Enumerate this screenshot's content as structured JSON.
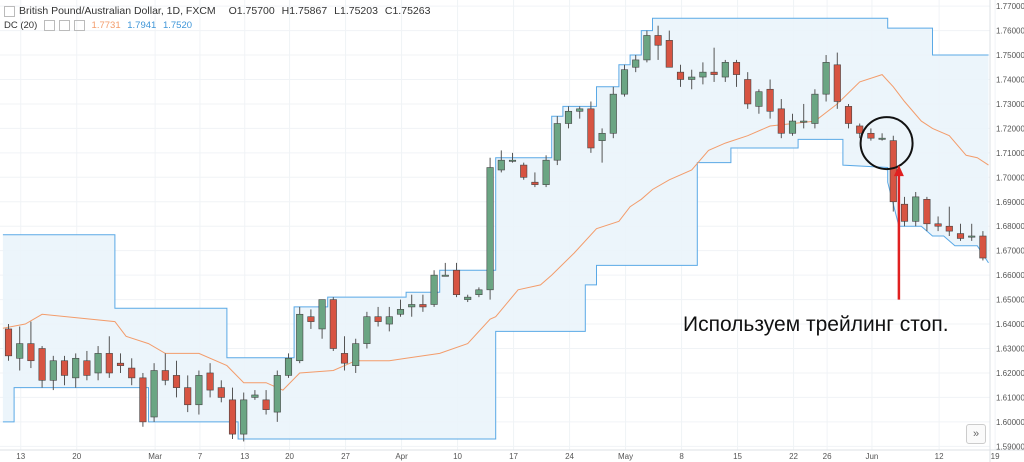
{
  "header": {
    "symbol": "British Pound/Australian Dollar, 1D, FXCM",
    "open_label": "O",
    "open": "1.75700",
    "high_label": "H",
    "high": "1.75867",
    "low_label": "L",
    "low": "1.75203",
    "close_label": "C",
    "close": "1.75263"
  },
  "indicator": {
    "name": "DC (20)",
    "values": [
      "1.7731",
      "1.7941",
      "1.7520"
    ],
    "colors": [
      "#f39c6b",
      "#5aa9e6",
      "#5aa9e6"
    ]
  },
  "annotation": {
    "text": "Используем трейлинг стоп."
  },
  "goto_icon": "chevrons-right-icon",
  "chart_data": {
    "type": "candlestick",
    "ylim": [
      1.5885,
      1.7725
    ],
    "y_ticks": [
      "1.77000",
      "1.76000",
      "1.75000",
      "1.74000",
      "1.73000",
      "1.72000",
      "1.71000",
      "1.70000",
      "1.69000",
      "1.68000",
      "1.67000",
      "1.66000",
      "1.65000",
      "1.64000",
      "1.63000",
      "1.62000",
      "1.61000",
      "1.60000",
      "1.59000"
    ],
    "x_ticks": [
      "13",
      "20",
      "Mar",
      "7",
      "13",
      "20",
      "27",
      "Apr",
      "10",
      "17",
      "24",
      "May",
      "8",
      "15",
      "22",
      "26",
      "Jun",
      "12",
      "19"
    ],
    "colors": {
      "up": "#6ba583",
      "down": "#d75442",
      "channel": "#5aa9e6",
      "mid": "#f39c6b",
      "fill": "#eaf4fb",
      "annotation": "#e02020"
    },
    "candles": [
      [
        1.638,
        1.64,
        1.625,
        1.627
      ],
      [
        1.626,
        1.639,
        1.621,
        1.632
      ],
      [
        1.632,
        1.641,
        1.622,
        1.625
      ],
      [
        1.63,
        1.631,
        1.614,
        1.617
      ],
      [
        1.617,
        1.627,
        1.613,
        1.625
      ],
      [
        1.625,
        1.627,
        1.615,
        1.619
      ],
      [
        1.618,
        1.628,
        1.614,
        1.626
      ],
      [
        1.625,
        1.629,
        1.617,
        1.619
      ],
      [
        1.62,
        1.631,
        1.617,
        1.628
      ],
      [
        1.628,
        1.635,
        1.618,
        1.62
      ],
      [
        1.624,
        1.628,
        1.62,
        1.623
      ],
      [
        1.622,
        1.626,
        1.615,
        1.618
      ],
      [
        1.618,
        1.62,
        1.598,
        1.6
      ],
      [
        1.602,
        1.624,
        1.6,
        1.621
      ],
      [
        1.621,
        1.628,
        1.615,
        1.617
      ],
      [
        1.619,
        1.625,
        1.61,
        1.614
      ],
      [
        1.614,
        1.619,
        1.604,
        1.607
      ],
      [
        1.607,
        1.621,
        1.603,
        1.619
      ],
      [
        1.62,
        1.624,
        1.61,
        1.613
      ],
      [
        1.614,
        1.617,
        1.608,
        1.61
      ],
      [
        1.609,
        1.614,
        1.593,
        1.595
      ],
      [
        1.595,
        1.612,
        1.592,
        1.609
      ],
      [
        1.61,
        1.613,
        1.609,
        1.611
      ],
      [
        1.609,
        1.613,
        1.603,
        1.605
      ],
      [
        1.604,
        1.621,
        1.6,
        1.619
      ],
      [
        1.619,
        1.628,
        1.618,
        1.626
      ],
      [
        1.625,
        1.647,
        1.624,
        1.644
      ],
      [
        1.643,
        1.646,
        1.638,
        1.641
      ],
      [
        1.638,
        1.65,
        1.634,
        1.65
      ],
      [
        1.65,
        1.651,
        1.629,
        1.63
      ],
      [
        1.628,
        1.635,
        1.621,
        1.624
      ],
      [
        1.623,
        1.634,
        1.62,
        1.632
      ],
      [
        1.632,
        1.645,
        1.63,
        1.643
      ],
      [
        1.643,
        1.647,
        1.639,
        1.641
      ],
      [
        1.64,
        1.647,
        1.637,
        1.643
      ],
      [
        1.644,
        1.65,
        1.643,
        1.646
      ],
      [
        1.647,
        1.652,
        1.643,
        1.648
      ],
      [
        1.648,
        1.652,
        1.645,
        1.647
      ],
      [
        1.648,
        1.662,
        1.647,
        1.66
      ],
      [
        1.66,
        1.665,
        1.66,
        1.66
      ],
      [
        1.662,
        1.665,
        1.651,
        1.652
      ],
      [
        1.65,
        1.652,
        1.649,
        1.651
      ],
      [
        1.652,
        1.655,
        1.651,
        1.654
      ],
      [
        1.654,
        1.708,
        1.65,
        1.704
      ],
      [
        1.703,
        1.711,
        1.702,
        1.707
      ],
      [
        1.707,
        1.71,
        1.706,
        1.707
      ],
      [
        1.705,
        1.706,
        1.699,
        1.7
      ],
      [
        1.698,
        1.702,
        1.696,
        1.697
      ],
      [
        1.697,
        1.709,
        1.696,
        1.707
      ],
      [
        1.707,
        1.725,
        1.705,
        1.722
      ],
      [
        1.722,
        1.729,
        1.72,
        1.727
      ],
      [
        1.727,
        1.729,
        1.724,
        1.728
      ],
      [
        1.728,
        1.731,
        1.71,
        1.712
      ],
      [
        1.715,
        1.72,
        1.706,
        1.718
      ],
      [
        1.718,
        1.737,
        1.716,
        1.734
      ],
      [
        1.734,
        1.746,
        1.733,
        1.744
      ],
      [
        1.745,
        1.75,
        1.743,
        1.748
      ],
      [
        1.748,
        1.76,
        1.747,
        1.758
      ],
      [
        1.758,
        1.762,
        1.748,
        1.754
      ],
      [
        1.756,
        1.76,
        1.745,
        1.745
      ],
      [
        1.743,
        1.746,
        1.737,
        1.74
      ],
      [
        1.74,
        1.744,
        1.736,
        1.741
      ],
      [
        1.741,
        1.747,
        1.738,
        1.743
      ],
      [
        1.743,
        1.753,
        1.739,
        1.742
      ],
      [
        1.741,
        1.748,
        1.739,
        1.747
      ],
      [
        1.747,
        1.748,
        1.737,
        1.742
      ],
      [
        1.74,
        1.743,
        1.728,
        1.73
      ],
      [
        1.729,
        1.736,
        1.726,
        1.735
      ],
      [
        1.736,
        1.74,
        1.724,
        1.727
      ],
      [
        1.728,
        1.732,
        1.716,
        1.718
      ],
      [
        1.718,
        1.726,
        1.717,
        1.723
      ],
      [
        1.723,
        1.73,
        1.72,
        1.723
      ],
      [
        1.722,
        1.736,
        1.72,
        1.734
      ],
      [
        1.734,
        1.75,
        1.731,
        1.747
      ],
      [
        1.746,
        1.751,
        1.728,
        1.731
      ],
      [
        1.729,
        1.73,
        1.72,
        1.722
      ],
      [
        1.721,
        1.722,
        1.716,
        1.718
      ],
      [
        1.718,
        1.72,
        1.715,
        1.716
      ],
      [
        1.716,
        1.718,
        1.715,
        1.716
      ],
      [
        1.715,
        1.717,
        1.686,
        1.69
      ],
      [
        1.689,
        1.692,
        1.68,
        1.682
      ],
      [
        1.682,
        1.694,
        1.68,
        1.692
      ],
      [
        1.691,
        1.692,
        1.678,
        1.681
      ],
      [
        1.681,
        1.684,
        1.678,
        1.68
      ],
      [
        1.68,
        1.688,
        1.676,
        1.678
      ],
      [
        1.677,
        1.681,
        1.674,
        1.675
      ],
      [
        1.676,
        1.681,
        1.674,
        1.676
      ],
      [
        1.676,
        1.678,
        1.666,
        1.667
      ]
    ],
    "channel_upper": [
      [
        -0.5,
        1.6765
      ],
      [
        9.5,
        1.6765
      ],
      [
        9.5,
        1.6465
      ],
      [
        19.5,
        1.6465
      ],
      [
        19.5,
        1.6262
      ],
      [
        25.5,
        1.6262
      ],
      [
        25.5,
        1.647
      ],
      [
        28.5,
        1.647
      ],
      [
        28.5,
        1.651
      ],
      [
        35.5,
        1.651
      ],
      [
        35.5,
        1.653
      ],
      [
        38.5,
        1.653
      ],
      [
        38.5,
        1.662
      ],
      [
        43.5,
        1.662
      ],
      [
        43.5,
        1.708
      ],
      [
        48.5,
        1.708
      ],
      [
        48.5,
        1.725
      ],
      [
        49.5,
        1.725
      ],
      [
        49.5,
        1.729
      ],
      [
        52.5,
        1.729
      ],
      [
        52.5,
        1.737
      ],
      [
        54.5,
        1.737
      ],
      [
        54.5,
        1.746
      ],
      [
        55.5,
        1.746
      ],
      [
        55.5,
        1.75
      ],
      [
        56.5,
        1.75
      ],
      [
        56.5,
        1.76
      ],
      [
        57.5,
        1.76
      ],
      [
        57.5,
        1.765
      ],
      [
        78.5,
        1.765
      ],
      [
        78.5,
        1.761
      ],
      [
        81.5,
        1.761
      ],
      [
        81.5,
        1.761
      ],
      [
        82.5,
        1.761
      ],
      [
        82.5,
        1.75
      ],
      [
        87.5,
        1.75
      ]
    ],
    "channel_lower": [
      [
        -0.5,
        1.6
      ],
      [
        0.5,
        1.6
      ],
      [
        0.5,
        1.614
      ],
      [
        12.5,
        1.614
      ],
      [
        12.5,
        1.6
      ],
      [
        20.5,
        1.6
      ],
      [
        20.5,
        1.593
      ],
      [
        43.5,
        1.593
      ],
      [
        43.5,
        1.637
      ],
      [
        51.5,
        1.637
      ],
      [
        51.5,
        1.656
      ],
      [
        52.5,
        1.656
      ],
      [
        52.5,
        1.664
      ],
      [
        61.5,
        1.664
      ],
      [
        61.5,
        1.706
      ],
      [
        64.5,
        1.706
      ],
      [
        64.5,
        1.712
      ],
      [
        70.5,
        1.712
      ],
      [
        70.5,
        1.7155
      ],
      [
        74.5,
        1.7155
      ],
      [
        74.5,
        1.705
      ],
      [
        78.5,
        1.704
      ],
      [
        78.5,
        1.698
      ],
      [
        79.5,
        1.68
      ],
      [
        81.5,
        1.68
      ],
      [
        82.5,
        1.676
      ],
      [
        83.5,
        1.676
      ],
      [
        84.5,
        1.672
      ],
      [
        86.5,
        1.672
      ],
      [
        87.5,
        1.665
      ]
    ],
    "mid_line": [
      [
        -0.5,
        1.6383
      ],
      [
        1.5,
        1.64
      ],
      [
        3,
        1.644
      ],
      [
        9.5,
        1.641
      ],
      [
        10.5,
        1.635
      ],
      [
        12.5,
        1.632
      ],
      [
        14,
        1.628
      ],
      [
        17,
        1.628
      ],
      [
        19.5,
        1.623
      ],
      [
        21,
        1.616
      ],
      [
        23,
        1.616
      ],
      [
        24.5,
        1.613
      ],
      [
        26,
        1.62
      ],
      [
        29,
        1.621
      ],
      [
        31,
        1.625
      ],
      [
        34,
        1.625
      ],
      [
        35.5,
        1.626
      ],
      [
        38.5,
        1.628
      ],
      [
        41,
        1.632
      ],
      [
        43,
        1.642
      ],
      [
        43.5,
        1.643
      ],
      [
        45.5,
        1.654
      ],
      [
        47.5,
        1.656
      ],
      [
        48.5,
        1.66
      ],
      [
        50.5,
        1.669
      ],
      [
        52.5,
        1.679
      ],
      [
        54.5,
        1.682
      ],
      [
        55.5,
        1.688
      ],
      [
        56.5,
        1.691
      ],
      [
        57.5,
        1.695
      ],
      [
        59,
        1.699
      ],
      [
        61,
        1.703
      ],
      [
        62.5,
        1.711
      ],
      [
        64,
        1.714
      ],
      [
        66,
        1.717
      ],
      [
        68,
        1.721
      ],
      [
        72,
        1.723
      ],
      [
        74,
        1.73
      ],
      [
        76,
        1.739
      ],
      [
        78,
        1.742
      ],
      [
        79,
        1.737
      ],
      [
        80,
        1.731
      ],
      [
        81.5,
        1.723
      ],
      [
        82.5,
        1.72
      ],
      [
        84,
        1.717
      ],
      [
        85.5,
        1.709
      ],
      [
        86.5,
        1.708
      ],
      [
        87.5,
        1.705
      ]
    ],
    "circle_center": [
      78.4,
      1.714
    ],
    "arrow_from": [
      79.5,
      1.65
    ],
    "arrow_to": [
      79.5,
      1.705
    ]
  }
}
